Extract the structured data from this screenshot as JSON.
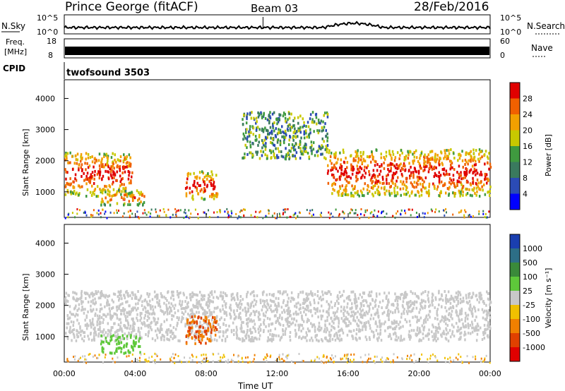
{
  "header": {
    "station": "Prince George (fitACF)",
    "beam": "Beam 03",
    "date": "28/Feb/2016"
  },
  "noise_panel": {
    "left_label": "N.Sky",
    "right_label": "N.Search",
    "yticks_left": [
      "10^5",
      "10^0"
    ],
    "yticks_right": [
      "10^5",
      "10^0"
    ]
  },
  "freq_panel": {
    "left_label_1": "Freq.",
    "left_label_2": "[MHz]",
    "right_label": "Nave",
    "yticks_left": [
      "18",
      "8"
    ],
    "yticks_right": [
      "60",
      "0"
    ]
  },
  "cpid_panel": {
    "label": "CPID",
    "value": "twofsound 3503"
  },
  "power_panel": {
    "ylabel": "Slant Range [km]",
    "yticks": [
      "4000",
      "3000",
      "2000",
      "1000"
    ],
    "colorbar_label": "Power [dB]",
    "colorbar_ticks": [
      "28",
      "24",
      "20",
      "16",
      "12",
      "8",
      "4"
    ],
    "colors": [
      "#0000ff",
      "#2b4bb5",
      "#3a7a5e",
      "#3f9a3f",
      "#c8c800",
      "#f2a000",
      "#f06000",
      "#e00000"
    ]
  },
  "velocity_panel": {
    "ylabel": "Slant Range [km]",
    "yticks": [
      "4000",
      "3000",
      "2000",
      "1000"
    ],
    "colorbar_label": "Velocity [m s⁻¹]",
    "colorbar_ticks": [
      "1000",
      "500",
      "100",
      "25",
      "-25",
      "-100",
      "-500",
      "-1000"
    ],
    "colors": [
      "#1a3fb0",
      "#2d6e86",
      "#3a8a3a",
      "#5ec83a",
      "#c8c8c8",
      "#f0c000",
      "#f08000",
      "#e04000",
      "#e00000"
    ]
  },
  "xaxis": {
    "ticks": [
      "00:00",
      "04:00",
      "08:00",
      "12:00",
      "16:00",
      "20:00",
      "00:00"
    ],
    "label": "Time UT"
  },
  "chart_data": {
    "type": "heatmap",
    "x_range_hours": [
      0,
      24
    ],
    "y_range_km": [
      180,
      4600
    ],
    "power_patches": [
      {
        "t0": 0.0,
        "t1": 3.8,
        "r0": 900,
        "r1": 2300,
        "level": "high"
      },
      {
        "t0": 2.0,
        "t1": 4.5,
        "r0": 600,
        "r1": 1100,
        "level": "mid"
      },
      {
        "t0": 6.8,
        "t1": 8.6,
        "r0": 800,
        "r1": 1700,
        "level": "high"
      },
      {
        "t0": 14.8,
        "t1": 24.0,
        "r0": 900,
        "r1": 2400,
        "level": "high"
      },
      {
        "t0": 10.0,
        "t1": 14.8,
        "r0": 2100,
        "r1": 3600,
        "level": "low"
      }
    ],
    "velocity_patches": [
      {
        "t0": 0.0,
        "t1": 24.0,
        "r0": 900,
        "r1": 2500,
        "level": "-25..25"
      },
      {
        "t0": 2.0,
        "t1": 4.3,
        "r0": 500,
        "r1": 1100,
        "level": "100..500"
      },
      {
        "t0": 6.8,
        "t1": 8.6,
        "r0": 800,
        "r1": 1700,
        "level": "-500..-100"
      }
    ]
  }
}
